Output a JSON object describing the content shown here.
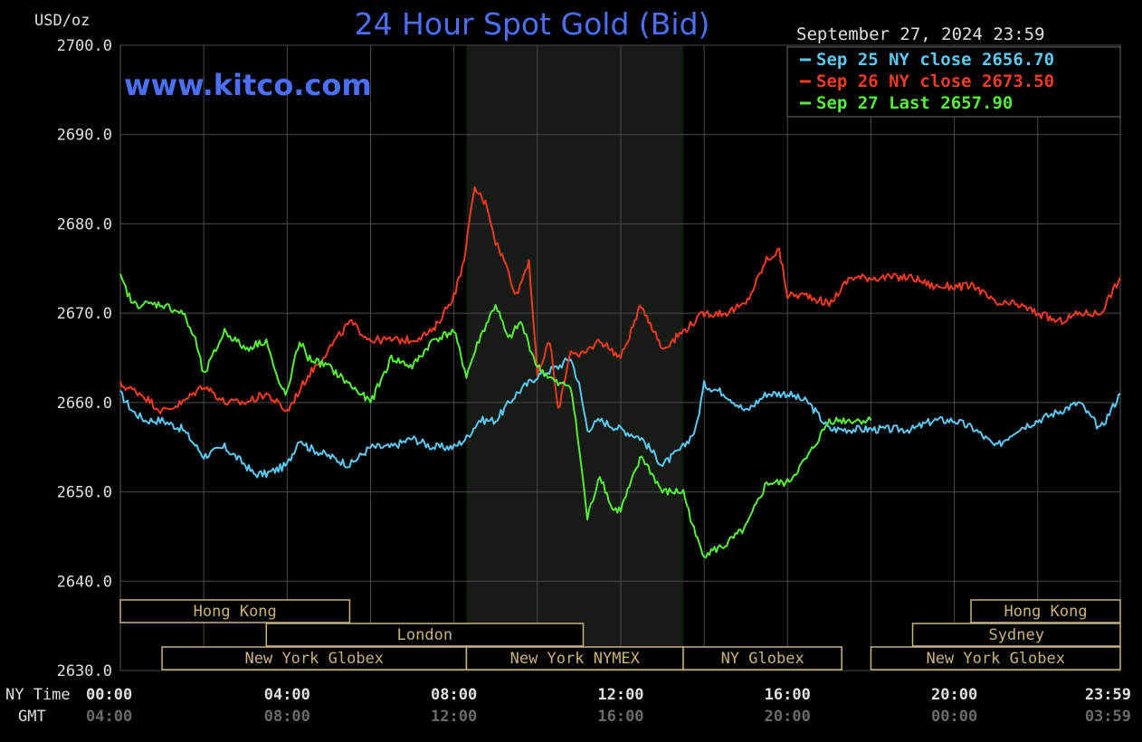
{
  "header": {
    "unit_label": "USD/oz",
    "title": "24 Hour Spot Gold (Bid)",
    "datetime": "September 27, 2024 23:59",
    "watermark": "www.kitco.com"
  },
  "legend": [
    {
      "text": "Sep 25 NY close 2656.70",
      "color": "#5ec8f2"
    },
    {
      "text": "Sep 26 NY close 2673.50",
      "color": "#ef3b24"
    },
    {
      "text": "Sep 27 Last 2657.90",
      "color": "#59ee3c"
    }
  ],
  "sessions": [
    {
      "name": "Hong Kong",
      "row": 0,
      "start": 0.0,
      "end": 5.5
    },
    {
      "name": "Hong Kong",
      "row": 0,
      "start": 20.4,
      "end": 23.98
    },
    {
      "name": "London",
      "row": 1,
      "start": 3.5,
      "end": 11.1
    },
    {
      "name": "Sydney",
      "row": 1,
      "start": 19.0,
      "end": 23.98
    },
    {
      "name": "New York Globex",
      "row": 2,
      "start": 1.0,
      "end": 8.3
    },
    {
      "name": "New York NYMEX",
      "row": 2,
      "start": 8.3,
      "end": 13.5
    },
    {
      "name": "NY Globex",
      "row": 2,
      "start": 13.5,
      "end": 17.3
    },
    {
      "name": "New York Globex",
      "row": 2,
      "start": 18.0,
      "end": 23.98
    }
  ],
  "session_labels": {
    "row_ny_globex_1": "New York Globex",
    "row_ny_nymex": "New York NYMEX",
    "row_ny_globex_2": "NY Globex",
    "row_ny_globex_3": "New York Globex"
  },
  "x_axis": {
    "row1_label": "NY Time",
    "row2_label": "GMT",
    "ny_ticks": [
      "00:00",
      "04:00",
      "08:00",
      "12:00",
      "16:00",
      "20:00",
      "23:59"
    ],
    "gmt_ticks": [
      "04:00",
      "08:00",
      "12:00",
      "16:00",
      "20:00",
      "00:00",
      "03:59"
    ]
  },
  "colors": {
    "background": "#000000",
    "grid": "#4a4a4a",
    "nymex_shade": "#161b16",
    "title": "#4c6ff5",
    "axis_text": "#e0e0e0",
    "session_border": "#c8b37e"
  },
  "chart_data": {
    "type": "line",
    "title": "24 Hour Spot Gold (Bid)",
    "ylabel": "USD/oz",
    "xlabel": "NY Time",
    "ylim": [
      2630,
      2700
    ],
    "xlim": [
      0,
      23.98
    ],
    "y_ticks": [
      "2700.0",
      "2690.0",
      "2680.0",
      "2670.0",
      "2660.0",
      "2650.0",
      "2640.0",
      "2630.0"
    ],
    "grid": true,
    "legend_position": "top-right",
    "shaded_region": {
      "label": "New York NYMEX",
      "start": 8.3,
      "end": 13.5
    },
    "series": [
      {
        "name": "Sep 25 NY close 2656.70",
        "color": "#5ec8f2",
        "x": [
          0,
          0.3,
          0.6,
          1.0,
          1.5,
          2.0,
          2.5,
          3.0,
          3.2,
          3.5,
          4.0,
          4.3,
          4.5,
          5.0,
          5.5,
          6.0,
          6.5,
          7.0,
          7.5,
          8.0,
          8.3,
          8.6,
          9.0,
          9.5,
          10.0,
          10.5,
          10.8,
          11.0,
          11.2,
          11.5,
          12.0,
          12.5,
          13.0,
          13.5,
          13.8,
          14.0,
          14.5,
          15.0,
          15.5,
          16.0,
          16.5,
          17.0,
          17.5,
          18.0,
          18.5,
          19.0,
          19.5,
          20.0,
          20.5,
          21.0,
          21.5,
          22.0,
          22.5,
          23.0,
          23.5,
          23.98
        ],
        "y": [
          2661,
          2659,
          2658,
          2658,
          2657,
          2654,
          2655,
          2653,
          2652,
          2652,
          2653,
          2656,
          2655,
          2654,
          2653,
          2655,
          2655,
          2656,
          2655,
          2655,
          2656,
          2658,
          2658,
          2661,
          2663,
          2664,
          2665,
          2662,
          2657,
          2658,
          2657,
          2656,
          2653,
          2655,
          2657,
          2662,
          2661,
          2659,
          2661,
          2661,
          2660,
          2657,
          2657,
          2657,
          2657,
          2657,
          2658,
          2658,
          2657,
          2655,
          2657,
          2658,
          2659,
          2660,
          2657,
          2661
        ]
      },
      {
        "name": "Sep 26 NY close 2673.50",
        "color": "#ef3b24",
        "x": [
          0,
          0.5,
          1.0,
          1.5,
          2.0,
          2.5,
          3.0,
          3.5,
          4.0,
          4.5,
          5.0,
          5.5,
          6.0,
          6.5,
          7.0,
          7.5,
          8.0,
          8.2,
          8.5,
          8.8,
          9.0,
          9.2,
          9.5,
          9.8,
          10.0,
          10.3,
          10.5,
          10.8,
          11.0,
          11.5,
          12.0,
          12.5,
          13.0,
          13.5,
          14.0,
          14.5,
          15.0,
          15.3,
          15.5,
          15.8,
          16.0,
          16.5,
          17.0,
          17.5,
          18.0,
          18.5,
          19.0,
          19.5,
          20.0,
          20.5,
          21.0,
          21.5,
          22.0,
          22.5,
          23.0,
          23.5,
          23.98
        ],
        "y": [
          2662,
          2661,
          2659,
          2660,
          2662,
          2660,
          2660,
          2661,
          2659,
          2663,
          2666,
          2669,
          2667,
          2667,
          2667,
          2668,
          2672,
          2675,
          2684,
          2682,
          2678,
          2676,
          2672,
          2676,
          2663,
          2667,
          2659,
          2666,
          2665,
          2667,
          2665,
          2671,
          2666,
          2668,
          2670,
          2670,
          2671,
          2674,
          2676,
          2677,
          2672,
          2672,
          2671,
          2674,
          2674,
          2674,
          2674,
          2673,
          2673,
          2673,
          2671,
          2671,
          2670,
          2669,
          2670,
          2670,
          2674
        ]
      },
      {
        "name": "Sep 27 Last 2657.90",
        "color": "#59ee3c",
        "x": [
          0,
          0.3,
          0.6,
          1.0,
          1.5,
          1.8,
          2.0,
          2.5,
          3.0,
          3.5,
          3.8,
          4.0,
          4.3,
          4.5,
          5.0,
          5.5,
          6.0,
          6.5,
          7.0,
          7.5,
          8.0,
          8.3,
          8.6,
          9.0,
          9.3,
          9.6,
          10.0,
          10.5,
          10.8,
          11.0,
          11.2,
          11.5,
          11.8,
          12.0,
          12.5,
          13.0,
          13.5,
          13.8,
          14.0,
          14.5,
          15.0,
          15.5,
          16.0,
          16.5,
          17.0,
          17.3,
          17.6,
          18.0
        ],
        "y": [
          2674,
          2671,
          2671,
          2671,
          2670,
          2667,
          2663,
          2668,
          2666,
          2667,
          2662,
          2661,
          2667,
          2665,
          2664,
          2662,
          2660,
          2665,
          2664,
          2667,
          2668,
          2663,
          2667,
          2671,
          2667,
          2669,
          2664,
          2662,
          2662,
          2655,
          2647,
          2652,
          2648,
          2648,
          2654,
          2650,
          2650,
          2645,
          2643,
          2644,
          2646,
          2651,
          2651,
          2654,
          2658,
          2658,
          2658,
          2658
        ]
      }
    ]
  }
}
